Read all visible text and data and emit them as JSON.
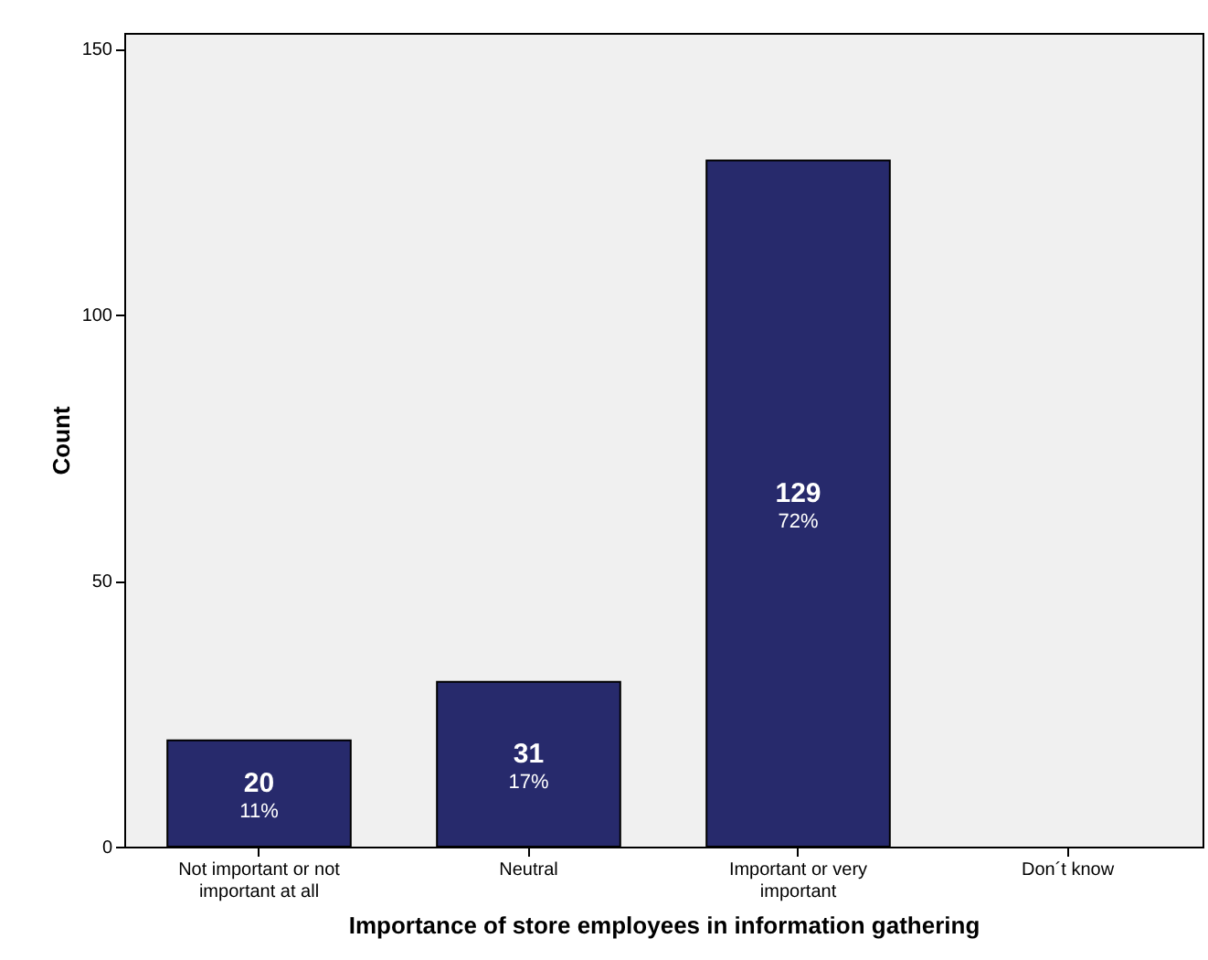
{
  "chart_data": {
    "type": "bar",
    "xlabel": "Importance of store employees in information gathering",
    "ylabel": "Count",
    "categories": [
      "Not important or not important at all",
      "Neutral",
      "Important or very important",
      "Don´t know"
    ],
    "values": [
      20,
      31,
      129,
      0
    ],
    "color": "#272a6c",
    "value_labels": [
      "20",
      "31",
      "129",
      null
    ],
    "annotations": [
      "11%",
      "17%",
      "72%"
    ],
    "ylim": [
      0,
      153
    ],
    "yticks": [
      0,
      50,
      100,
      150
    ],
    "grid": false
  }
}
